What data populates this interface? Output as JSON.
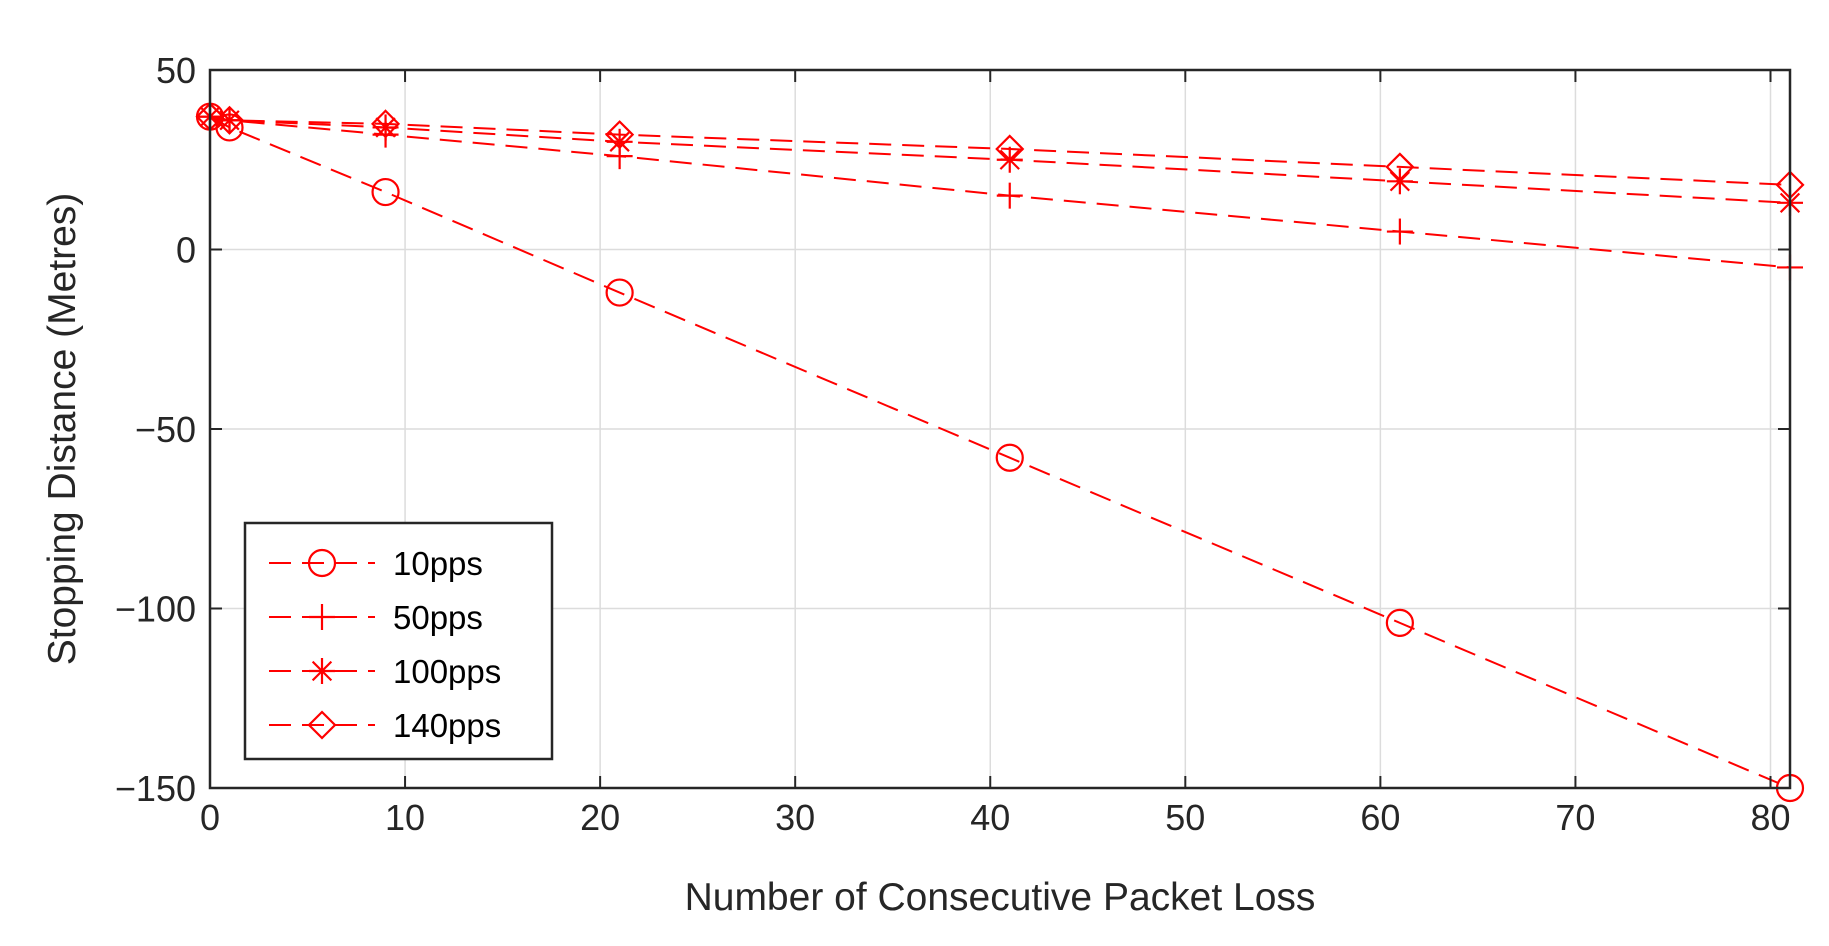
{
  "chart_data": {
    "type": "line",
    "title": "",
    "xlabel": "Number of Consecutive Packet Loss",
    "ylabel": "Stopping Distance (Metres)",
    "xlim": [
      0,
      81
    ],
    "ylim": [
      -150,
      50
    ],
    "xticks": [
      0,
      10,
      20,
      30,
      40,
      50,
      60,
      70,
      80
    ],
    "yticks": [
      50,
      0,
      -50,
      -100,
      -150
    ],
    "xtick_labels": [
      "0",
      "10",
      "20",
      "30",
      "40",
      "50",
      "60",
      "70",
      "80"
    ],
    "ytick_labels": [
      "50",
      "0",
      "−50",
      "−100",
      "−150"
    ],
    "grid": true,
    "legend_position": "bottom-left",
    "color": "#ff0000",
    "series": [
      {
        "name": "10pps",
        "marker": "circle",
        "line_style": "dashed",
        "x": [
          0,
          1,
          9,
          21,
          41,
          61,
          81
        ],
        "y": [
          37,
          34,
          16,
          -12,
          -58,
          -104,
          -150
        ]
      },
      {
        "name": "50pps",
        "marker": "plus",
        "line_style": "dashed",
        "x": [
          0,
          1,
          9,
          21,
          41,
          61,
          81
        ],
        "y": [
          37,
          36,
          32,
          26,
          15,
          5,
          -5
        ]
      },
      {
        "name": "100pps",
        "marker": "asterisk",
        "line_style": "dashed",
        "x": [
          0,
          1,
          9,
          21,
          41,
          61,
          81
        ],
        "y": [
          37,
          36,
          34,
          30,
          25,
          19,
          13
        ]
      },
      {
        "name": "140pps",
        "marker": "diamond",
        "line_style": "dashed",
        "x": [
          0,
          1,
          9,
          21,
          41,
          61,
          81
        ],
        "y": [
          37,
          36,
          35,
          32,
          28,
          23,
          18
        ]
      }
    ]
  }
}
